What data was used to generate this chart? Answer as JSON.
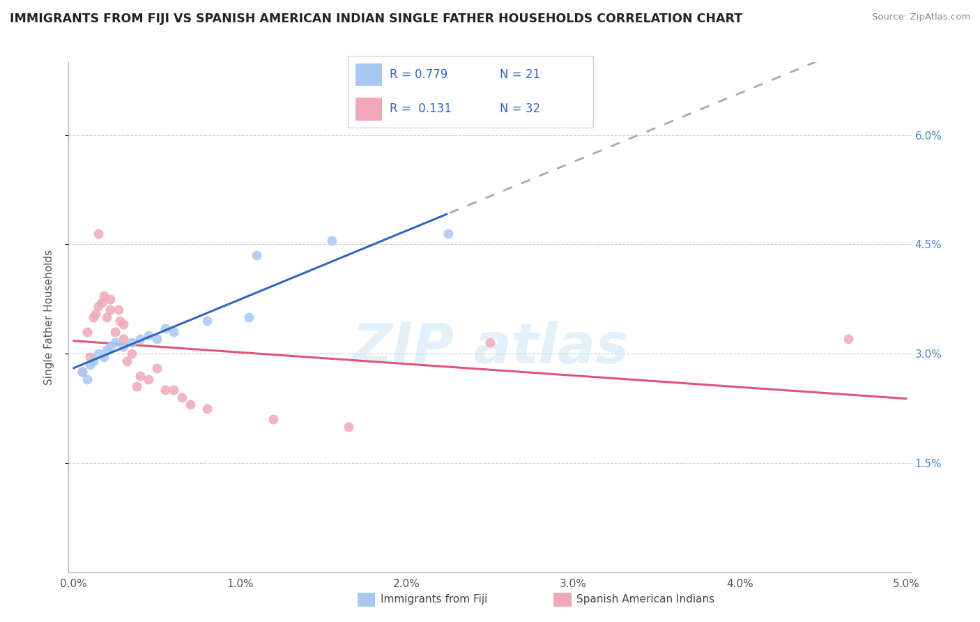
{
  "title": "IMMIGRANTS FROM FIJI VS SPANISH AMERICAN INDIAN SINGLE FATHER HOUSEHOLDS CORRELATION CHART",
  "source": "Source: ZipAtlas.com",
  "ylabel": "Single Father Households",
  "xmin": 0.0,
  "xmax": 5.0,
  "ymin": 0.0,
  "ymax": 7.0,
  "ytick_vals": [
    1.5,
    3.0,
    4.5,
    6.0
  ],
  "xtick_vals": [
    0.0,
    1.0,
    2.0,
    3.0,
    4.0,
    5.0
  ],
  "color_blue": "#a8c8f0",
  "color_pink": "#f0a8b8",
  "line_blue": "#3366bb",
  "line_pink": "#e05575",
  "line_gray_dash": "#aaaaaa",
  "fiji_x": [
    0.05,
    0.08,
    0.1,
    0.12,
    0.15,
    0.18,
    0.2,
    0.22,
    0.25,
    0.3,
    0.35,
    0.4,
    0.45,
    0.5,
    0.55,
    0.6,
    0.8,
    1.05,
    1.1,
    1.55,
    2.25
  ],
  "fiji_y": [
    2.75,
    2.65,
    2.85,
    2.9,
    3.0,
    2.95,
    3.05,
    3.1,
    3.15,
    3.1,
    3.15,
    3.2,
    3.25,
    3.2,
    3.35,
    3.3,
    3.45,
    3.5,
    4.35,
    4.55,
    4.65
  ],
  "spanish_x": [
    0.05,
    0.08,
    0.1,
    0.12,
    0.13,
    0.15,
    0.15,
    0.17,
    0.18,
    0.2,
    0.22,
    0.22,
    0.25,
    0.27,
    0.28,
    0.3,
    0.3,
    0.32,
    0.35,
    0.38,
    0.4,
    0.45,
    0.5,
    0.55,
    0.6,
    0.65,
    0.7,
    0.8,
    1.2,
    1.65,
    2.5,
    4.65
  ],
  "spanish_y": [
    2.75,
    3.3,
    2.95,
    3.5,
    3.55,
    3.65,
    4.65,
    3.7,
    3.8,
    3.5,
    3.6,
    3.75,
    3.3,
    3.6,
    3.45,
    3.2,
    3.4,
    2.9,
    3.0,
    2.55,
    2.7,
    2.65,
    2.8,
    2.5,
    2.5,
    2.4,
    2.3,
    2.25,
    2.1,
    2.0,
    3.15,
    3.2
  ]
}
